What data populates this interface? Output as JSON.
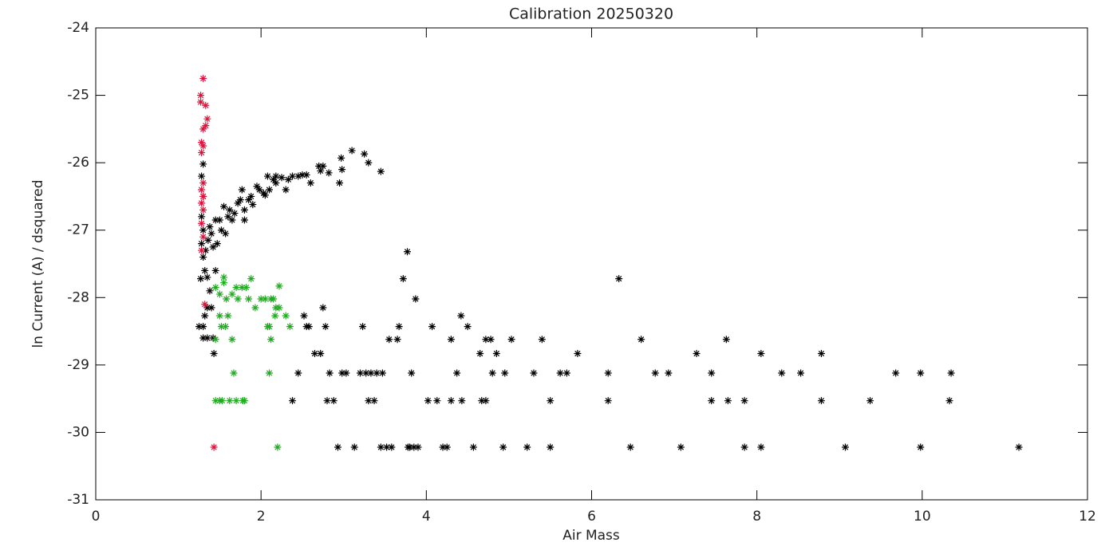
{
  "chart_data": {
    "type": "scatter",
    "title": "Calibration 20250320",
    "x_label": "Air Mass",
    "y_label": "ln Current (A) / dsquared",
    "xlim": [
      0,
      12
    ],
    "ylim": [
      -31,
      -24
    ],
    "xticks": [
      0,
      2,
      4,
      6,
      8,
      10,
      12
    ],
    "yticks": [
      -31,
      -30,
      -29,
      -28,
      -27,
      -26,
      -25,
      -24
    ],
    "marker": "asterisk",
    "series": [
      {
        "color": "#000000",
        "x": [
          1.28,
          1.3,
          1.3,
          1.28,
          1.3,
          1.28,
          1.3,
          1.27,
          1.32,
          1.35,
          1.38,
          1.33,
          1.36,
          1.4,
          1.38,
          1.42,
          1.45,
          1.47,
          1.45,
          1.5,
          1.52,
          1.55,
          1.57,
          1.6,
          1.62,
          1.65,
          1.68,
          1.72,
          1.75,
          1.77,
          1.8,
          1.8,
          1.85,
          1.88,
          1.9,
          1.95,
          1.98,
          2.03,
          2.05,
          2.08,
          2.1,
          2.15,
          2.18,
          2.18,
          2.25,
          2.3,
          2.33,
          2.38,
          2.45,
          2.5,
          2.55,
          2.6,
          2.7,
          2.72,
          2.75,
          2.82,
          2.95,
          2.97,
          2.98,
          3.1,
          3.25,
          3.3,
          3.45,
          1.25,
          1.3,
          1.32,
          1.3,
          1.35,
          1.35,
          1.4,
          1.42,
          1.43,
          2.38,
          2.45,
          2.52,
          2.55,
          2.58,
          2.65,
          2.72,
          2.75,
          2.78,
          2.8,
          2.83,
          2.88,
          2.93,
          2.98,
          3.03,
          3.13,
          3.2,
          3.23,
          3.27,
          3.3,
          3.33,
          3.37,
          3.4,
          3.45,
          3.47,
          3.52,
          3.55,
          3.58,
          3.65,
          3.67,
          3.72,
          3.77,
          3.78,
          3.8,
          3.82,
          3.85,
          3.87,
          3.9,
          4.02,
          4.07,
          4.13,
          4.2,
          4.25,
          4.3,
          4.3,
          4.37,
          4.42,
          4.43,
          4.5,
          4.57,
          4.65,
          4.67,
          4.72,
          4.72,
          4.78,
          4.8,
          4.85,
          4.93,
          4.95,
          5.03,
          5.22,
          5.3,
          5.4,
          5.5,
          5.5,
          5.62,
          5.7,
          5.83,
          6.2,
          6.2,
          6.33,
          6.47,
          6.6,
          6.77,
          6.93,
          7.08,
          7.27,
          7.45,
          7.45,
          7.63,
          7.65,
          7.85,
          7.85,
          8.05,
          8.05,
          8.3,
          8.53,
          8.78,
          8.78,
          9.07,
          9.37,
          9.68,
          9.98,
          9.98,
          10.33,
          10.35,
          11.17
        ],
        "y": [
          -26.2,
          -26.02,
          -26.5,
          -26.8,
          -27.0,
          -27.2,
          -27.4,
          -27.72,
          -27.6,
          -27.7,
          -27.9,
          -27.3,
          -27.15,
          -27.05,
          -26.95,
          -27.25,
          -27.6,
          -27.2,
          -26.85,
          -26.85,
          -27.0,
          -26.65,
          -27.05,
          -26.8,
          -26.7,
          -26.85,
          -26.75,
          -26.6,
          -26.55,
          -26.4,
          -26.85,
          -26.7,
          -26.55,
          -26.5,
          -26.62,
          -26.35,
          -26.4,
          -26.45,
          -26.48,
          -26.2,
          -26.4,
          -26.25,
          -26.2,
          -26.3,
          -26.22,
          -26.4,
          -26.25,
          -26.2,
          -26.2,
          -26.18,
          -26.18,
          -26.3,
          -26.05,
          -26.12,
          -26.05,
          -26.15,
          -26.3,
          -25.93,
          -26.1,
          -25.82,
          -25.87,
          -26.0,
          -26.13,
          -28.43,
          -28.43,
          -28.27,
          -28.6,
          -28.6,
          -28.15,
          -28.15,
          -28.6,
          -28.83,
          -29.53,
          -29.12,
          -28.27,
          -28.43,
          -28.43,
          -28.83,
          -28.83,
          -28.15,
          -28.43,
          -29.53,
          -29.12,
          -29.53,
          -30.22,
          -29.12,
          -29.12,
          -30.22,
          -29.12,
          -28.43,
          -29.12,
          -29.53,
          -29.12,
          -29.53,
          -29.12,
          -30.22,
          -29.12,
          -30.22,
          -28.62,
          -30.22,
          -28.62,
          -28.43,
          -27.72,
          -27.32,
          -30.22,
          -30.22,
          -29.12,
          -30.22,
          -28.02,
          -30.22,
          -29.53,
          -28.43,
          -29.53,
          -30.22,
          -30.22,
          -28.62,
          -29.53,
          -29.12,
          -28.27,
          -29.53,
          -28.43,
          -30.22,
          -28.83,
          -29.53,
          -28.62,
          -29.53,
          -28.62,
          -29.12,
          -28.83,
          -30.22,
          -29.12,
          -28.62,
          -30.22,
          -29.12,
          -28.62,
          -29.53,
          -30.22,
          -29.12,
          -29.12,
          -28.83,
          -29.12,
          -29.53,
          -27.72,
          -30.22,
          -28.62,
          -29.12,
          -29.12,
          -30.22,
          -28.83,
          -29.12,
          -29.53,
          -28.62,
          -29.53,
          -29.53,
          -30.22,
          -28.83,
          -30.22,
          -29.12,
          -29.12,
          -28.83,
          -29.53,
          -30.22,
          -29.53,
          -29.12,
          -29.12,
          -30.22,
          -29.53,
          -29.12,
          -30.22
        ]
      },
      {
        "color": "#dc143c",
        "x": [
          1.27,
          1.27,
          1.3,
          1.33,
          1.35,
          1.33,
          1.3,
          1.28,
          1.3,
          1.28,
          1.3,
          1.28,
          1.3,
          1.28,
          1.3,
          1.28,
          1.3,
          1.28,
          1.32,
          1.43
        ],
        "y": [
          -25.0,
          -25.1,
          -24.75,
          -25.15,
          -25.35,
          -25.45,
          -25.5,
          -25.7,
          -25.75,
          -25.85,
          -26.3,
          -26.4,
          -26.5,
          -26.6,
          -26.7,
          -26.9,
          -27.1,
          -27.3,
          -28.1,
          -30.22
        ]
      },
      {
        "color": "#22aa22",
        "x": [
          1.45,
          1.5,
          1.45,
          1.5,
          1.53,
          1.62,
          1.7,
          1.78,
          1.8,
          1.52,
          1.57,
          1.6,
          1.65,
          1.67,
          1.5,
          1.55,
          1.55,
          1.58,
          1.65,
          1.7,
          1.72,
          1.77,
          1.82,
          1.85,
          1.88,
          1.93,
          2.0,
          2.05,
          2.08,
          2.1,
          2.1,
          2.12,
          2.15,
          2.12,
          2.17,
          2.18,
          2.22,
          2.22,
          2.3,
          2.35,
          2.2,
          1.45
        ],
        "y": [
          -28.62,
          -28.27,
          -29.53,
          -29.53,
          -29.53,
          -29.53,
          -29.53,
          -29.53,
          -29.53,
          -28.43,
          -28.43,
          -28.27,
          -28.62,
          -29.12,
          -27.95,
          -27.7,
          -27.78,
          -28.02,
          -27.95,
          -27.85,
          -28.02,
          -27.85,
          -27.85,
          -28.02,
          -27.72,
          -28.15,
          -28.02,
          -28.02,
          -28.43,
          -28.43,
          -29.12,
          -28.02,
          -28.02,
          -28.62,
          -28.27,
          -28.15,
          -28.15,
          -27.83,
          -28.27,
          -28.43,
          -30.22,
          -27.85
        ]
      }
    ]
  }
}
